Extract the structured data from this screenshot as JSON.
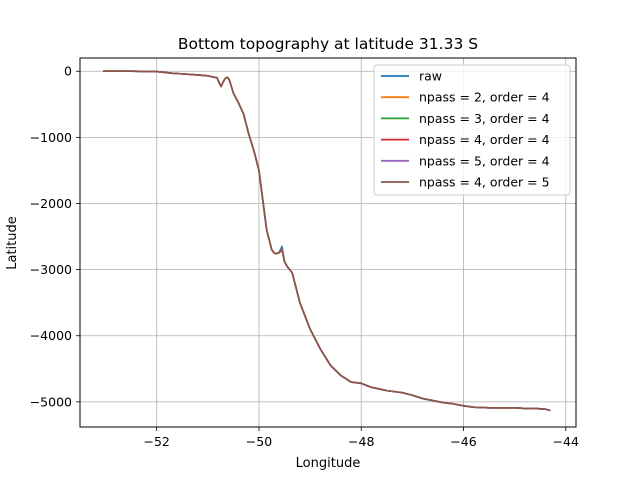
{
  "chart_data": {
    "type": "line",
    "title": "Bottom topography at latitude 31.33 S",
    "xlabel": "Longitude",
    "ylabel": "Latitude",
    "xlim": [
      -53.5,
      -43.8
    ],
    "ylim": [
      -5380,
      200
    ],
    "xticks": [
      -52,
      -50,
      -48,
      -46,
      -44
    ],
    "yticks": [
      0,
      -1000,
      -2000,
      -3000,
      -4000,
      -5000
    ],
    "xtick_labels": [
      "−52",
      "−50",
      "−48",
      "−46",
      "−44"
    ],
    "ytick_labels": [
      "0",
      "−1000",
      "−2000",
      "−3000",
      "−4000",
      "−5000"
    ],
    "grid": true,
    "legend_position": "top-right",
    "colors": [
      "#1f77b4",
      "#ff7f0e",
      "#2ca02c",
      "#d62728",
      "#9467bd",
      "#8c564b"
    ],
    "x": [
      -53.05,
      -52.5,
      -52.0,
      -51.7,
      -51.5,
      -51.3,
      -51.0,
      -50.82,
      -50.78,
      -50.74,
      -50.7,
      -50.66,
      -50.62,
      -50.58,
      -50.5,
      -50.4,
      -50.3,
      -50.2,
      -50.1,
      -50.0,
      -49.95,
      -49.9,
      -49.85,
      -49.8,
      -49.75,
      -49.7,
      -49.65,
      -49.6,
      -49.55,
      -49.5,
      -49.45,
      -49.35,
      -49.3,
      -49.2,
      -49.1,
      -49.0,
      -48.9,
      -48.8,
      -48.6,
      -48.4,
      -48.2,
      -48.0,
      -47.8,
      -47.5,
      -47.2,
      -47.0,
      -46.8,
      -46.6,
      -46.4,
      -46.2,
      -46.0,
      -45.8,
      -45.5,
      -45.2,
      -45.0,
      -44.8,
      -44.6,
      -44.4,
      -44.3
    ],
    "series": [
      {
        "name": "raw",
        "values": [
          0,
          0,
          -5,
          -30,
          -40,
          -50,
          -70,
          -100,
          -170,
          -230,
          -160,
          -110,
          -90,
          -130,
          -330,
          -480,
          -650,
          -950,
          -1200,
          -1500,
          -1800,
          -2100,
          -2400,
          -2550,
          -2700,
          -2750,
          -2760,
          -2730,
          -2650,
          -2880,
          -2950,
          -3050,
          -3200,
          -3500,
          -3700,
          -3900,
          -4050,
          -4200,
          -4450,
          -4600,
          -4700,
          -4720,
          -4780,
          -4830,
          -4860,
          -4900,
          -4950,
          -4980,
          -5010,
          -5030,
          -5060,
          -5080,
          -5090,
          -5090,
          -5090,
          -5100,
          -5100,
          -5110,
          -5130
        ]
      },
      {
        "name": "npass = 2, order = 4",
        "values": [
          0,
          0,
          -5,
          -30,
          -40,
          -50,
          -70,
          -100,
          -170,
          -230,
          -160,
          -110,
          -90,
          -130,
          -330,
          -480,
          -650,
          -950,
          -1200,
          -1500,
          -1800,
          -2100,
          -2400,
          -2550,
          -2700,
          -2750,
          -2760,
          -2740,
          -2700,
          -2880,
          -2950,
          -3050,
          -3200,
          -3500,
          -3700,
          -3900,
          -4050,
          -4200,
          -4450,
          -4600,
          -4700,
          -4720,
          -4780,
          -4830,
          -4860,
          -4900,
          -4950,
          -4980,
          -5010,
          -5030,
          -5060,
          -5080,
          -5090,
          -5090,
          -5090,
          -5100,
          -5100,
          -5110,
          -5130
        ]
      },
      {
        "name": "npass = 3, order = 4",
        "values": [
          0,
          0,
          -5,
          -30,
          -40,
          -50,
          -70,
          -100,
          -170,
          -230,
          -160,
          -110,
          -90,
          -130,
          -330,
          -480,
          -650,
          -950,
          -1200,
          -1500,
          -1800,
          -2100,
          -2400,
          -2550,
          -2700,
          -2750,
          -2760,
          -2740,
          -2690,
          -2880,
          -2950,
          -3050,
          -3200,
          -3500,
          -3700,
          -3900,
          -4050,
          -4200,
          -4450,
          -4600,
          -4700,
          -4720,
          -4780,
          -4830,
          -4860,
          -4900,
          -4950,
          -4980,
          -5010,
          -5030,
          -5060,
          -5080,
          -5090,
          -5090,
          -5090,
          -5100,
          -5100,
          -5110,
          -5130
        ]
      },
      {
        "name": "npass = 4, order = 4",
        "values": [
          0,
          0,
          -5,
          -30,
          -40,
          -50,
          -70,
          -100,
          -170,
          -230,
          -160,
          -110,
          -90,
          -130,
          -330,
          -480,
          -650,
          -950,
          -1200,
          -1500,
          -1800,
          -2100,
          -2400,
          -2550,
          -2700,
          -2750,
          -2760,
          -2740,
          -2690,
          -2880,
          -2950,
          -3050,
          -3200,
          -3500,
          -3700,
          -3900,
          -4050,
          -4200,
          -4450,
          -4600,
          -4700,
          -4720,
          -4780,
          -4830,
          -4860,
          -4900,
          -4950,
          -4980,
          -5010,
          -5030,
          -5060,
          -5080,
          -5090,
          -5090,
          -5090,
          -5100,
          -5100,
          -5110,
          -5130
        ]
      },
      {
        "name": "npass = 5, order = 4",
        "values": [
          0,
          0,
          -5,
          -30,
          -40,
          -50,
          -70,
          -100,
          -170,
          -230,
          -160,
          -110,
          -90,
          -130,
          -330,
          -480,
          -650,
          -950,
          -1200,
          -1500,
          -1800,
          -2100,
          -2400,
          -2550,
          -2700,
          -2750,
          -2760,
          -2740,
          -2690,
          -2880,
          -2950,
          -3050,
          -3200,
          -3500,
          -3700,
          -3900,
          -4050,
          -4200,
          -4450,
          -4600,
          -4700,
          -4720,
          -4780,
          -4830,
          -4860,
          -4900,
          -4950,
          -4980,
          -5010,
          -5030,
          -5060,
          -5080,
          -5090,
          -5090,
          -5090,
          -5100,
          -5100,
          -5110,
          -5130
        ]
      },
      {
        "name": "npass = 4, order = 5",
        "values": [
          0,
          0,
          -5,
          -30,
          -40,
          -50,
          -70,
          -100,
          -170,
          -230,
          -160,
          -110,
          -90,
          -130,
          -330,
          -480,
          -650,
          -950,
          -1200,
          -1500,
          -1800,
          -2100,
          -2400,
          -2550,
          -2700,
          -2750,
          -2760,
          -2740,
          -2700,
          -2880,
          -2950,
          -3050,
          -3200,
          -3500,
          -3700,
          -3900,
          -4050,
          -4200,
          -4450,
          -4600,
          -4700,
          -4720,
          -4780,
          -4830,
          -4860,
          -4900,
          -4950,
          -4980,
          -5010,
          -5030,
          -5060,
          -5080,
          -5090,
          -5090,
          -5090,
          -5100,
          -5100,
          -5110,
          -5130
        ]
      }
    ]
  }
}
